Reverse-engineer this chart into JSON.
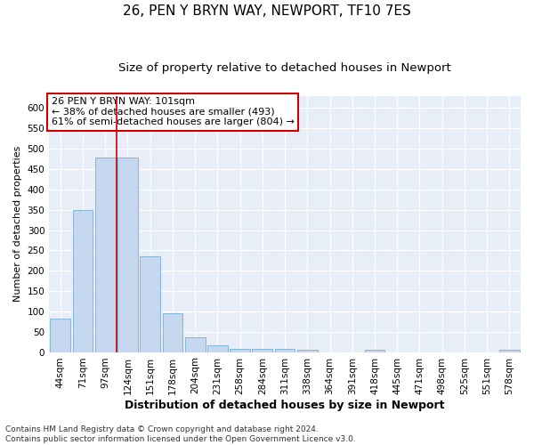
{
  "title1": "26, PEN Y BRYN WAY, NEWPORT, TF10 7ES",
  "title2": "Size of property relative to detached houses in Newport",
  "xlabel": "Distribution of detached houses by size in Newport",
  "ylabel": "Number of detached properties",
  "categories": [
    "44sqm",
    "71sqm",
    "97sqm",
    "124sqm",
    "151sqm",
    "178sqm",
    "204sqm",
    "231sqm",
    "258sqm",
    "284sqm",
    "311sqm",
    "338sqm",
    "364sqm",
    "391sqm",
    "418sqm",
    "445sqm",
    "471sqm",
    "498sqm",
    "525sqm",
    "551sqm",
    "578sqm"
  ],
  "values": [
    82,
    350,
    478,
    478,
    235,
    95,
    37,
    16,
    8,
    8,
    8,
    5,
    0,
    0,
    5,
    0,
    0,
    0,
    0,
    0,
    5
  ],
  "bar_color": "#c5d8f0",
  "bar_edgecolor": "#7bafd4",
  "vline_x": 2.5,
  "vline_color": "#cc0000",
  "annotation_text": "26 PEN Y BRYN WAY: 101sqm\n← 38% of detached houses are smaller (493)\n61% of semi-detached houses are larger (804) →",
  "annotation_box_color": "#ffffff",
  "annotation_box_edgecolor": "#cc0000",
  "ylim": [
    0,
    630
  ],
  "yticks": [
    0,
    50,
    100,
    150,
    200,
    250,
    300,
    350,
    400,
    450,
    500,
    550,
    600
  ],
  "background_color": "#e8eef7",
  "footer1": "Contains HM Land Registry data © Crown copyright and database right 2024.",
  "footer2": "Contains public sector information licensed under the Open Government Licence v3.0.",
  "title1_fontsize": 11,
  "title2_fontsize": 9.5,
  "xlabel_fontsize": 9,
  "ylabel_fontsize": 8,
  "tick_fontsize": 7.5,
  "annotation_fontsize": 8,
  "footer_fontsize": 6.5
}
